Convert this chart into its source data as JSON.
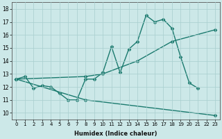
{
  "xlabel": "Humidex (Indice chaleur)",
  "xlim": [
    -0.5,
    23.5
  ],
  "ylim": [
    9.5,
    18.5
  ],
  "xticks": [
    0,
    1,
    2,
    3,
    4,
    5,
    6,
    7,
    8,
    9,
    10,
    11,
    12,
    13,
    14,
    15,
    16,
    17,
    18,
    19,
    20,
    21,
    22,
    23
  ],
  "yticks": [
    10,
    11,
    12,
    13,
    14,
    15,
    16,
    17,
    18
  ],
  "bg_color": "#cce8e8",
  "grid_color": "#a8cece",
  "line_color": "#1a7a6e",
  "line1_x": [
    0,
    1,
    2,
    3,
    4,
    5,
    6,
    7,
    8,
    9,
    10,
    11,
    12,
    13,
    14,
    15,
    16,
    17,
    18,
    19,
    20,
    21
  ],
  "line1_y": [
    12.6,
    12.8,
    11.9,
    12.1,
    12.0,
    11.5,
    11.0,
    11.0,
    12.6,
    12.6,
    13.1,
    15.1,
    13.1,
    14.9,
    15.5,
    17.5,
    17.0,
    17.2,
    16.5,
    14.3,
    12.3,
    11.9
  ],
  "line2_x": [
    0,
    8,
    10,
    14,
    18,
    23
  ],
  "line2_y": [
    12.6,
    12.8,
    13.0,
    14.0,
    15.5,
    16.4
  ],
  "line3_x": [
    0,
    8,
    23
  ],
  "line3_y": [
    12.6,
    11.0,
    9.8
  ],
  "marker": "D",
  "markersize": 2.5,
  "linewidth": 1.0
}
